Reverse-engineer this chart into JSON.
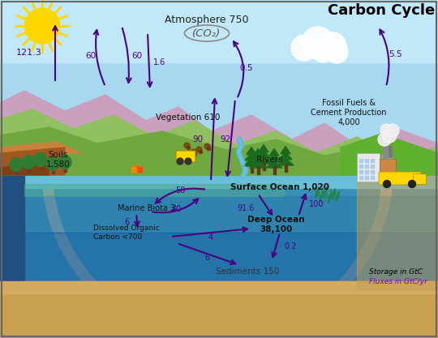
{
  "title": "Carbon Cycle",
  "labels": {
    "atmosphere": "Atmosphere 750",
    "co2": "(CO₂)",
    "vegetation": "Vegetation 610",
    "soils": "Soils\n1,580",
    "fossil": "Fossil Fuels &\nCement Production\n4,000",
    "rivers": "Rivers",
    "surface_ocean": "Surface Ocean 1,020",
    "marine_biota": "Marine Biota 3",
    "dissolved": "Dissolved Organic\nCarbon <700",
    "deep_ocean": "Deep Ocean\n38,100",
    "sediments": "Sediments 150",
    "storage": "Storage in GtC",
    "fluxes": "Fluxes in GtC/yr"
  },
  "flux_values": {
    "large_left": "121.3",
    "veg_up1": "60",
    "veg_down": "60",
    "veg_down2": "1.6",
    "atm_river": "0.5",
    "fossil_up": "5.5",
    "land_ocean": "92",
    "ocean_atm": "90",
    "surf_marine": "50",
    "marine_surf": "40",
    "surf_down": "91.6",
    "surf_up": "100",
    "marine_doc": "6",
    "doc_deep": "4",
    "doc_sed": "6",
    "deep_sed": "0.2"
  },
  "arrow_color": "#4B0082",
  "large_arrow_color": "#AAAAAA",
  "storage_color": "#000000",
  "fluxes_color": "#7B00CC"
}
